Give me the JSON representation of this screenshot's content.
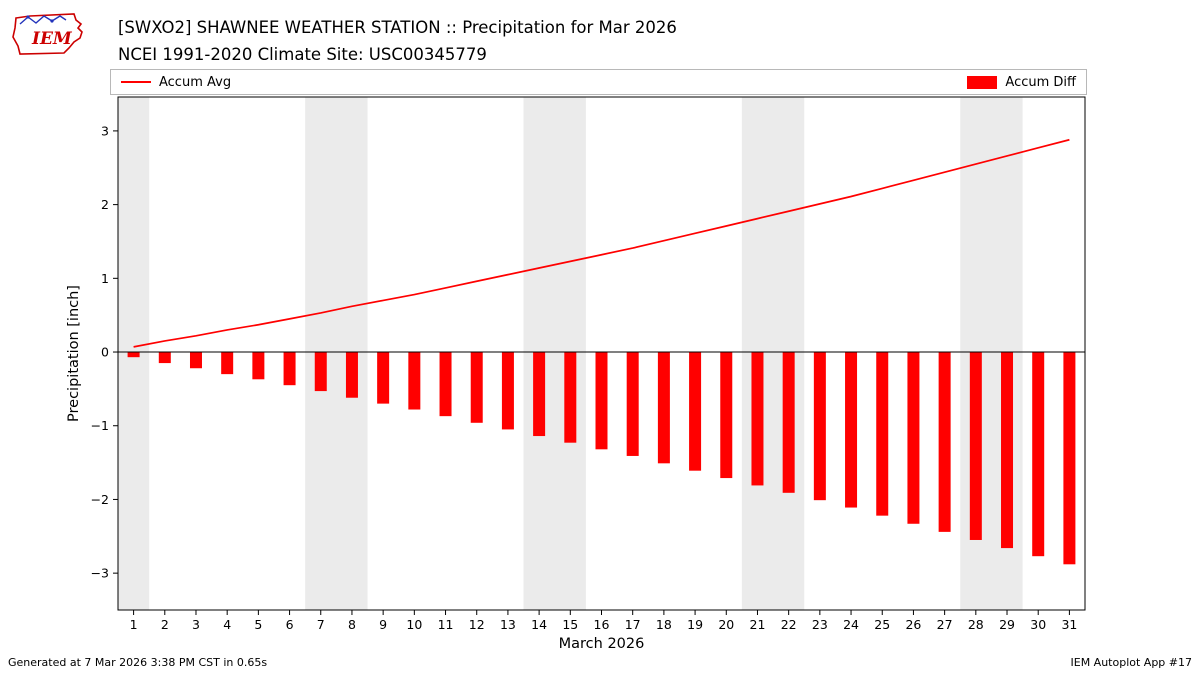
{
  "header": {
    "title_line1": "[SWXO2] SHAWNEE WEATHER STATION :: Precipitation for Mar 2026",
    "title_line2": "NCEI 1991-2020 Climate Site: USC00345779",
    "logo_text": "IEM"
  },
  "legend": {
    "line_label": "Accum Avg",
    "bar_label": "Accum Diff"
  },
  "footer": {
    "left": "Generated at 7 Mar 2026 3:38 PM CST in 0.65s",
    "right": "IEM Autoplot App #17"
  },
  "chart_data": {
    "type": "line+bar",
    "title": "[SWXO2] SHAWNEE WEATHER STATION :: Precipitation for Mar 2026",
    "subtitle": "NCEI 1991-2020 Climate Site: USC00345779",
    "xlabel": "March 2026",
    "ylabel": "Precipitation [inch]",
    "xlim": [
      0.5,
      31.5
    ],
    "ylim": [
      -3.5,
      3.46
    ],
    "yticks": [
      3,
      2,
      1,
      0,
      -1,
      -2,
      -3
    ],
    "xticks": [
      1,
      2,
      3,
      4,
      5,
      6,
      7,
      8,
      9,
      10,
      11,
      12,
      13,
      14,
      15,
      16,
      17,
      18,
      19,
      20,
      21,
      22,
      23,
      24,
      25,
      26,
      27,
      28,
      29,
      30,
      31
    ],
    "x": [
      1,
      2,
      3,
      4,
      5,
      6,
      7,
      8,
      9,
      10,
      11,
      12,
      13,
      14,
      15,
      16,
      17,
      18,
      19,
      20,
      21,
      22,
      23,
      24,
      25,
      26,
      27,
      28,
      29,
      30,
      31
    ],
    "series": [
      {
        "name": "Accum Avg",
        "type": "line",
        "color": "#ff0000",
        "values": [
          0.07,
          0.15,
          0.22,
          0.3,
          0.37,
          0.45,
          0.53,
          0.62,
          0.7,
          0.78,
          0.87,
          0.96,
          1.05,
          1.14,
          1.23,
          1.32,
          1.41,
          1.51,
          1.61,
          1.71,
          1.81,
          1.91,
          2.01,
          2.11,
          2.22,
          2.33,
          2.44,
          2.55,
          2.66,
          2.77,
          2.88
        ]
      },
      {
        "name": "Accum Diff",
        "type": "bar",
        "color": "#ff0000",
        "values": [
          -0.07,
          -0.15,
          -0.22,
          -0.3,
          -0.37,
          -0.45,
          -0.53,
          -0.62,
          -0.7,
          -0.78,
          -0.87,
          -0.96,
          -1.05,
          -1.14,
          -1.23,
          -1.32,
          -1.41,
          -1.51,
          -1.61,
          -1.71,
          -1.81,
          -1.91,
          -2.01,
          -2.11,
          -2.22,
          -2.33,
          -2.44,
          -2.55,
          -2.66,
          -2.77,
          -2.88
        ]
      }
    ],
    "weekend_bands": [
      [
        0.5,
        1.5
      ],
      [
        6.5,
        8.5
      ],
      [
        13.5,
        15.5
      ],
      [
        20.5,
        22.5
      ],
      [
        27.5,
        29.5
      ]
    ],
    "band_color": "#ebebeb",
    "grid": false,
    "legend_position": "top"
  }
}
